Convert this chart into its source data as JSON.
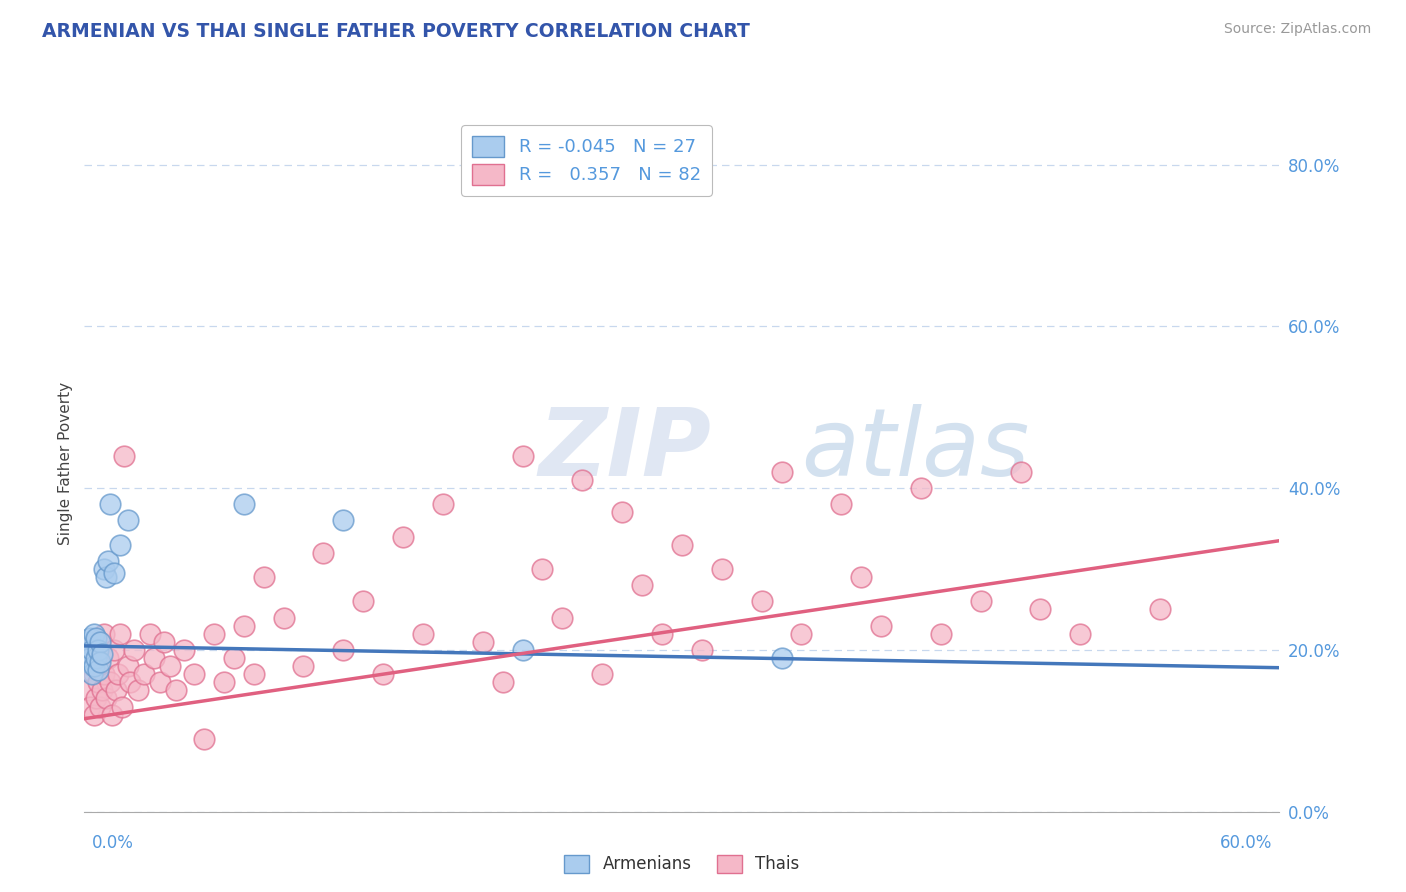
{
  "title": "ARMENIAN VS THAI SINGLE FATHER POVERTY CORRELATION CHART",
  "source": "Source: ZipAtlas.com",
  "ylabel": "Single Father Poverty",
  "legend_armenians": "Armenians",
  "legend_thais": "Thais",
  "r_armenian": -0.045,
  "n_armenian": 27,
  "r_thai": 0.357,
  "n_thai": 82,
  "color_armenian_face": "#aaccee",
  "color_armenian_edge": "#6699cc",
  "color_thai_face": "#f5b8c8",
  "color_thai_edge": "#e07090",
  "color_line_armenian": "#4477bb",
  "color_line_thai": "#e06080",
  "color_title": "#3355aa",
  "color_axis_labels": "#5599dd",
  "color_grid": "#c8d8ee",
  "color_source": "#999999",
  "watermark_zip": "ZIP",
  "watermark_atlas": "atlas",
  "xmin": 0.0,
  "xmax": 0.6,
  "ymin": 0.0,
  "ymax": 0.86,
  "yticks": [
    0.0,
    0.2,
    0.4,
    0.6,
    0.8
  ],
  "armenian_x": [
    0.001,
    0.002,
    0.002,
    0.003,
    0.003,
    0.004,
    0.004,
    0.005,
    0.005,
    0.006,
    0.006,
    0.007,
    0.007,
    0.008,
    0.008,
    0.009,
    0.01,
    0.011,
    0.012,
    0.013,
    0.015,
    0.018,
    0.022,
    0.08,
    0.13,
    0.22,
    0.35
  ],
  "armenian_y": [
    0.195,
    0.21,
    0.185,
    0.19,
    0.215,
    0.17,
    0.2,
    0.22,
    0.18,
    0.19,
    0.215,
    0.175,
    0.2,
    0.21,
    0.185,
    0.195,
    0.3,
    0.29,
    0.31,
    0.38,
    0.295,
    0.33,
    0.36,
    0.38,
    0.36,
    0.2,
    0.19
  ],
  "thai_x": [
    0.001,
    0.002,
    0.002,
    0.003,
    0.004,
    0.004,
    0.005,
    0.005,
    0.006,
    0.006,
    0.007,
    0.007,
    0.008,
    0.008,
    0.009,
    0.01,
    0.01,
    0.011,
    0.012,
    0.013,
    0.014,
    0.015,
    0.016,
    0.017,
    0.018,
    0.019,
    0.02,
    0.022,
    0.023,
    0.025,
    0.027,
    0.03,
    0.033,
    0.035,
    0.038,
    0.04,
    0.043,
    0.046,
    0.05,
    0.055,
    0.06,
    0.065,
    0.07,
    0.075,
    0.08,
    0.085,
    0.09,
    0.1,
    0.11,
    0.12,
    0.13,
    0.14,
    0.15,
    0.16,
    0.17,
    0.18,
    0.2,
    0.21,
    0.22,
    0.23,
    0.24,
    0.25,
    0.26,
    0.27,
    0.28,
    0.29,
    0.3,
    0.31,
    0.32,
    0.34,
    0.35,
    0.36,
    0.38,
    0.39,
    0.4,
    0.42,
    0.43,
    0.45,
    0.47,
    0.48,
    0.5,
    0.54
  ],
  "thai_y": [
    0.2,
    0.15,
    0.19,
    0.13,
    0.18,
    0.21,
    0.12,
    0.17,
    0.14,
    0.2,
    0.16,
    0.19,
    0.13,
    0.21,
    0.15,
    0.17,
    0.22,
    0.14,
    0.19,
    0.16,
    0.12,
    0.2,
    0.15,
    0.17,
    0.22,
    0.13,
    0.44,
    0.18,
    0.16,
    0.2,
    0.15,
    0.17,
    0.22,
    0.19,
    0.16,
    0.21,
    0.18,
    0.15,
    0.2,
    0.17,
    0.09,
    0.22,
    0.16,
    0.19,
    0.23,
    0.17,
    0.29,
    0.24,
    0.18,
    0.32,
    0.2,
    0.26,
    0.17,
    0.34,
    0.22,
    0.38,
    0.21,
    0.16,
    0.44,
    0.3,
    0.24,
    0.41,
    0.17,
    0.37,
    0.28,
    0.22,
    0.33,
    0.2,
    0.3,
    0.26,
    0.42,
    0.22,
    0.38,
    0.29,
    0.23,
    0.4,
    0.22,
    0.26,
    0.42,
    0.25,
    0.22,
    0.25
  ],
  "arm_trend_x0": 0.0,
  "arm_trend_x1": 0.6,
  "arm_trend_y0": 0.205,
  "arm_trend_y1": 0.178,
  "thai_trend_x0": 0.0,
  "thai_trend_x1": 0.6,
  "thai_trend_y0": 0.115,
  "thai_trend_y1": 0.335
}
